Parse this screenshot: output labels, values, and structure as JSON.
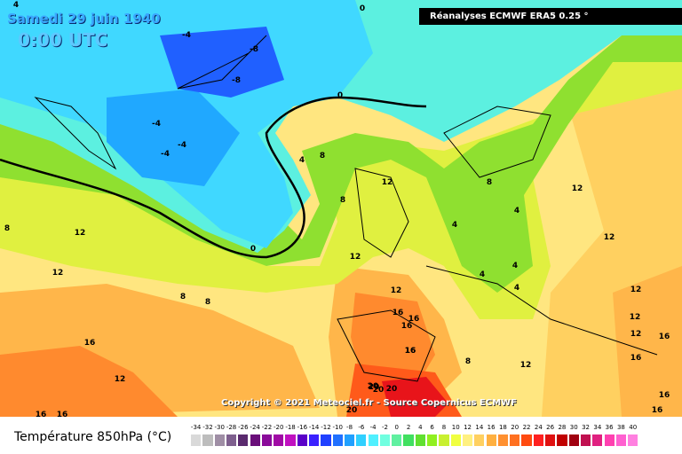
{
  "header": {
    "date": "Samedi 29 juin 1940",
    "time": "0:00 UTC",
    "source": "Réanalyses ECMWF ERA5 0.25 °"
  },
  "footer": {
    "copyright": "Copyright © 2021 Meteociel.fr - Source Copernicus ECMWF",
    "legend_title": "Température 850hPa (°C)"
  },
  "legend": {
    "ticks": [
      "-34",
      "-32",
      "-30",
      "-28",
      "-26",
      "-24",
      "-22",
      "-20",
      "-18",
      "-16",
      "-14",
      "-12",
      "-10",
      "-8",
      "-6",
      "-4",
      "-2",
      "0",
      "2",
      "4",
      "6",
      "8",
      "10",
      "12",
      "14",
      "16",
      "18",
      "20",
      "22",
      "24",
      "26",
      "28",
      "30",
      "32",
      "34",
      "36",
      "38",
      "40"
    ],
    "colors": [
      "#d9d9d9",
      "#bdbdbd",
      "#9f8ea5",
      "#7e5f8e",
      "#5a2a6e",
      "#6a0f7a",
      "#8a0a9a",
      "#a00aa5",
      "#c010c0",
      "#5a00c8",
      "#3a20ff",
      "#2040ff",
      "#2070ff",
      "#20a0ff",
      "#30d0ff",
      "#50f0ff",
      "#70ffe0",
      "#60f0a0",
      "#40e060",
      "#60e030",
      "#90f020",
      "#c8f030",
      "#f0ff40",
      "#fff080",
      "#ffd060",
      "#ffb040",
      "#ff9030",
      "#ff7020",
      "#ff4a10",
      "#ff2020",
      "#e01010",
      "#c00000",
      "#a00010",
      "#c01050",
      "#e02080",
      "#ff40b0",
      "#ff60d0",
      "#ff80e0"
    ]
  },
  "map_labels": [
    "4",
    "-4",
    "-8",
    "-8",
    "-4",
    "-4",
    "-4",
    "0",
    "0",
    "4",
    "8",
    "8",
    "12",
    "12",
    "12",
    "12",
    "8",
    "12",
    "12",
    "0",
    "12",
    "4",
    "4",
    "4",
    "8",
    "4",
    "12",
    "16",
    "16",
    "16",
    "12",
    "12",
    "16",
    "16",
    "16",
    "16",
    "16",
    "8",
    "12",
    "16",
    "16",
    "20",
    "20",
    "20",
    "20",
    "4",
    "8",
    "8",
    "16",
    "16",
    "12",
    "20"
  ],
  "colors": {
    "contour_line": "#000000"
  }
}
